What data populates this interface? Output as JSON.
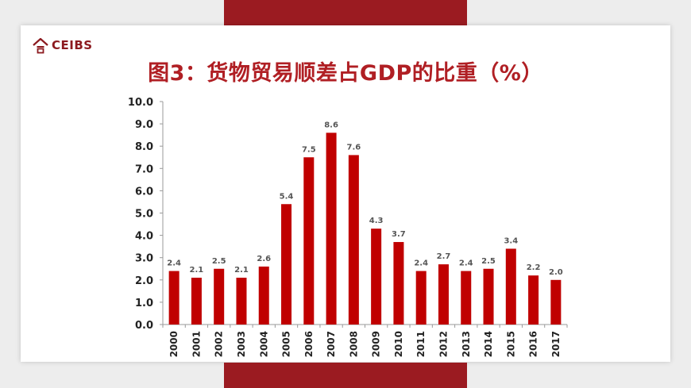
{
  "logo": {
    "text": "CEIBS"
  },
  "colors": {
    "bar": "#c00000",
    "title": "#b01f24",
    "brand": "#9b1b21"
  },
  "chart_data": {
    "type": "bar",
    "title": "图3：货物贸易顺差占GDP的比重（%）",
    "categories": [
      "2000",
      "2001",
      "2002",
      "2003",
      "2004",
      "2005",
      "2006",
      "2007",
      "2008",
      "2009",
      "2010",
      "2011",
      "2012",
      "2013",
      "2014",
      "2015",
      "2016",
      "2017"
    ],
    "values": [
      2.4,
      2.1,
      2.5,
      2.1,
      2.6,
      5.4,
      7.5,
      8.6,
      7.6,
      4.3,
      3.7,
      2.4,
      2.7,
      2.4,
      2.5,
      3.4,
      2.2,
      2.0
    ],
    "value_labels": [
      "2.4",
      "2.1",
      "2.5",
      "2.1",
      "2.6",
      "5.4",
      "7.5",
      "8.6",
      "7.6",
      "4.3",
      "3.7",
      "2.4",
      "2.7",
      "2.4",
      "2.5",
      "3.4",
      "2.2",
      "2.0"
    ],
    "ylim": [
      0,
      10
    ],
    "yticks": [
      "0.0",
      "1.0",
      "2.0",
      "3.0",
      "4.0",
      "5.0",
      "6.0",
      "7.0",
      "8.0",
      "9.0",
      "10.0"
    ],
    "xlabel": "",
    "ylabel": "",
    "grid": false,
    "legend": "none"
  }
}
